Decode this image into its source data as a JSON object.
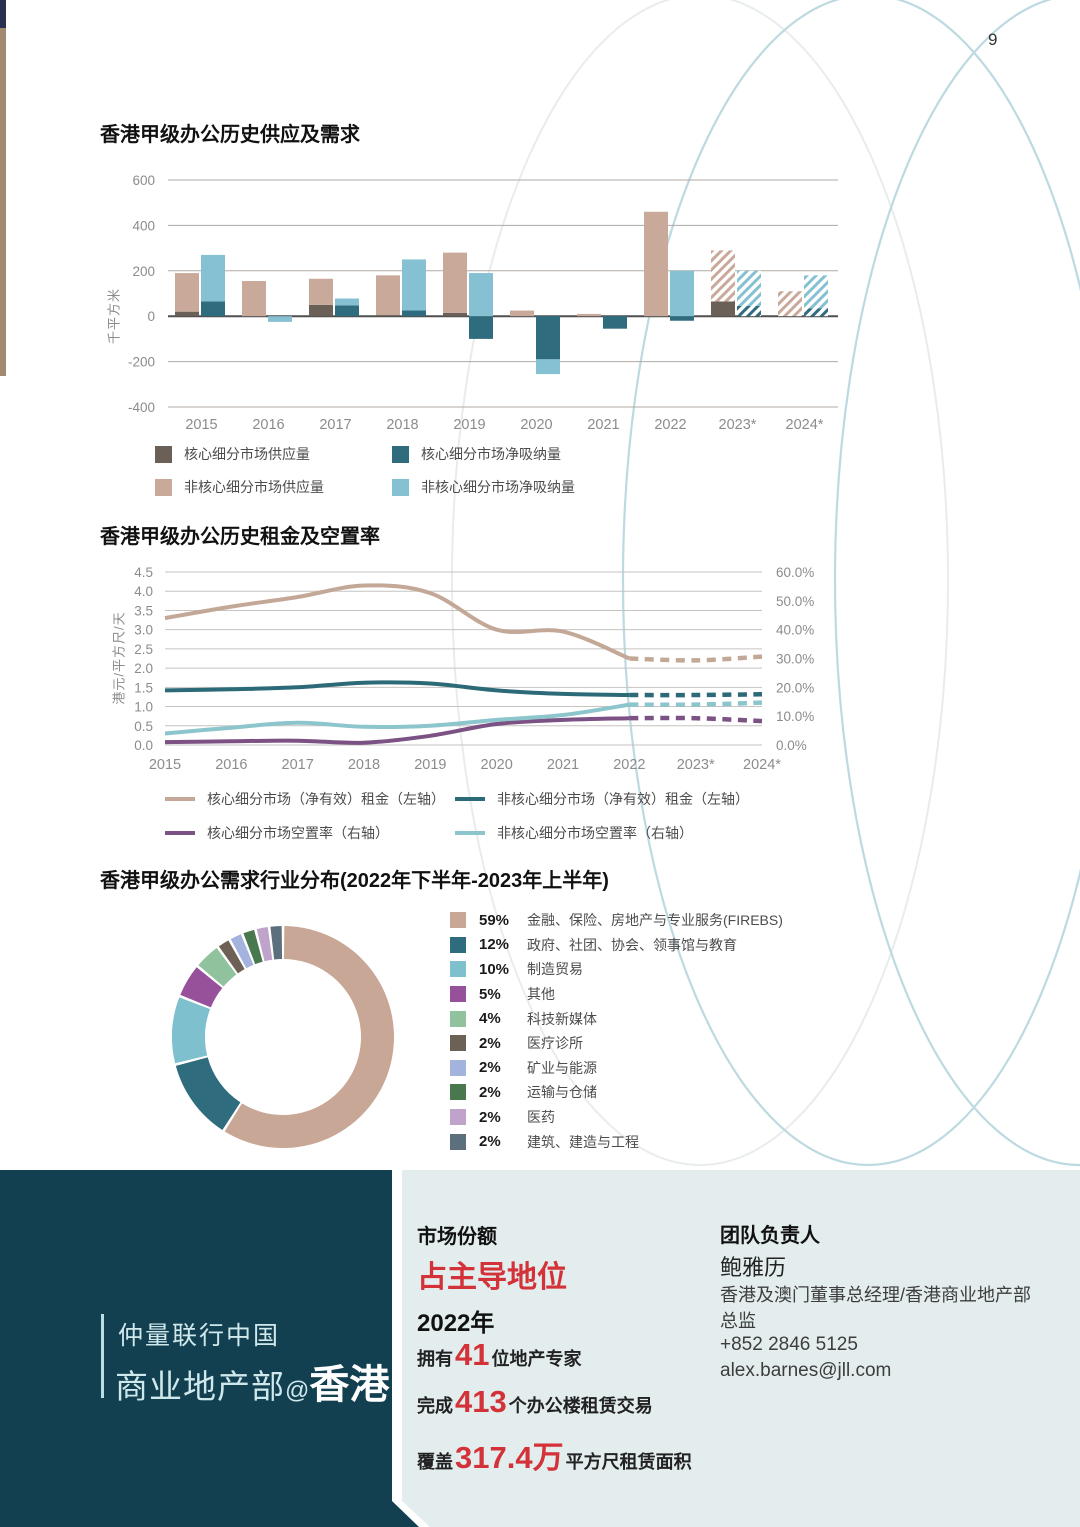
{
  "page_number": "9",
  "colors": {
    "accent_red": "#d23238",
    "dark_panel": "#134050",
    "light_panel": "#e3edee",
    "decor_ellipse": "#bcdae0",
    "axis_text": "#8c8c8c"
  },
  "chart_data": [
    {
      "type": "bar",
      "title": "香港甲级办公历史供应及需求",
      "ylabel": "千平方米",
      "ylim": [
        -400,
        600
      ],
      "ytick_step": 200,
      "grid": true,
      "legend_position": "bottom",
      "categories": [
        "2015",
        "2016",
        "2017",
        "2018",
        "2019",
        "2020",
        "2021",
        "2022",
        "2023*",
        "2024*"
      ],
      "forecast_categories": [
        "2023*",
        "2024*"
      ],
      "series": [
        {
          "name": "核心细分市场供应量",
          "group": "supply",
          "color": "#6a6057",
          "hatch_in_forecast": false,
          "values": [
            20,
            0,
            50,
            5,
            15,
            0,
            0,
            0,
            65,
            0
          ]
        },
        {
          "name": "非核心细分市场供应量",
          "group": "supply",
          "color": "#c9aa9a",
          "hatch_in_forecast": true,
          "values": [
            170,
            155,
            115,
            175,
            265,
            25,
            10,
            460,
            225,
            110
          ]
        },
        {
          "name": "核心细分市场净吸纳量",
          "group": "absorption",
          "color": "#2f6c7e",
          "hatch_in_forecast": true,
          "values": [
            65,
            0,
            48,
            25,
            -100,
            -190,
            -55,
            -20,
            45,
            35
          ]
        },
        {
          "name": "非核心细分市场净吸纳量",
          "group": "absorption",
          "color": "#85c1d3",
          "hatch_in_forecast": true,
          "values": [
            205,
            -25,
            30,
            225,
            190,
            -65,
            0,
            200,
            155,
            145
          ]
        }
      ]
    },
    {
      "type": "line",
      "title": "香港甲级办公历史租金及空置率",
      "ylabel_left": "港元/平方尺/天",
      "x": [
        "2015",
        "2016",
        "2017",
        "2018",
        "2019",
        "2020",
        "2021",
        "2022",
        "2023*",
        "2024*"
      ],
      "left_ylim": [
        0,
        4.5
      ],
      "left_tick_step": 0.5,
      "right_ylim": [
        0,
        60
      ],
      "right_tick_step": 10,
      "right_tick_suffix": "%",
      "grid": true,
      "dashed_from_index": 7,
      "legend_position": "bottom",
      "series": [
        {
          "name": "核心细分市场（净有效）租金（左轴）",
          "axis": "left",
          "color": "#c3a898",
          "values": [
            3.3,
            3.6,
            3.85,
            4.15,
            3.95,
            3.0,
            2.95,
            2.25,
            2.2,
            2.3
          ]
        },
        {
          "name": "非核心细分市场（净有效）租金（左轴）",
          "axis": "left",
          "color": "#2d6a78",
          "values": [
            1.42,
            1.45,
            1.5,
            1.62,
            1.6,
            1.42,
            1.33,
            1.3,
            1.3,
            1.32
          ]
        },
        {
          "name": "核心细分市场空置率（右轴）",
          "axis": "right",
          "color": "#7c5184",
          "values": [
            1.0,
            1.3,
            1.5,
            0.8,
            3.2,
            7.3,
            8.7,
            9.3,
            9.3,
            8.3
          ]
        },
        {
          "name": "非核心细分市场空置率（右轴）",
          "axis": "right",
          "color": "#8dc5cc",
          "values": [
            4.0,
            6.0,
            7.7,
            6.3,
            6.7,
            8.7,
            10.4,
            14.0,
            14.0,
            14.7
          ]
        }
      ]
    },
    {
      "type": "donut",
      "title": "香港甲级办公需求行业分布(2022年下半年-2023年上半年)",
      "slices": [
        {
          "pct": 59,
          "label": "金融、保险、房地产与专业服务(FIREBS)",
          "color": "#c9a797"
        },
        {
          "pct": 12,
          "label": "政府、社团、协会、领事馆与教育",
          "color": "#2f6c7e"
        },
        {
          "pct": 10,
          "label": "制造贸易",
          "color": "#7fc0cf"
        },
        {
          "pct": 5,
          "label": "其他",
          "color": "#96519a"
        },
        {
          "pct": 4,
          "label": "科技新媒体",
          "color": "#90c29d"
        },
        {
          "pct": 2,
          "label": "医疗诊所",
          "color": "#6d6054"
        },
        {
          "pct": 2,
          "label": "矿业与能源",
          "color": "#a3b3dd"
        },
        {
          "pct": 2,
          "label": "运输与仓储",
          "color": "#49774e"
        },
        {
          "pct": 2,
          "label": "医药",
          "color": "#c0a3cb"
        },
        {
          "pct": 2,
          "label": "建筑、建造与工程",
          "color": "#5b6f7c"
        }
      ]
    }
  ],
  "footer": {
    "brand": {
      "line1": "仲量联行中国",
      "line2_regular": "商业地产部",
      "line2_at": "@",
      "line2_bold": "香港"
    },
    "market_share": {
      "heading": "市场份额",
      "highlight": "占主导地位",
      "year": "2022年",
      "stats": [
        {
          "pre": "拥有",
          "num": "41",
          "post": "位地产专家"
        },
        {
          "pre": "完成",
          "num": "413",
          "post": "个办公楼租赁交易"
        },
        {
          "pre": "覆盖",
          "num": "317.4万",
          "post": "平方尺租赁面积"
        }
      ]
    },
    "team": {
      "heading": "团队负责人",
      "name": "鲍雅历",
      "title": "香港及澳门董事总经理/香港商业地产部总监",
      "phone": "+852 2846 5125",
      "email": "alex.barnes@jll.com"
    }
  }
}
